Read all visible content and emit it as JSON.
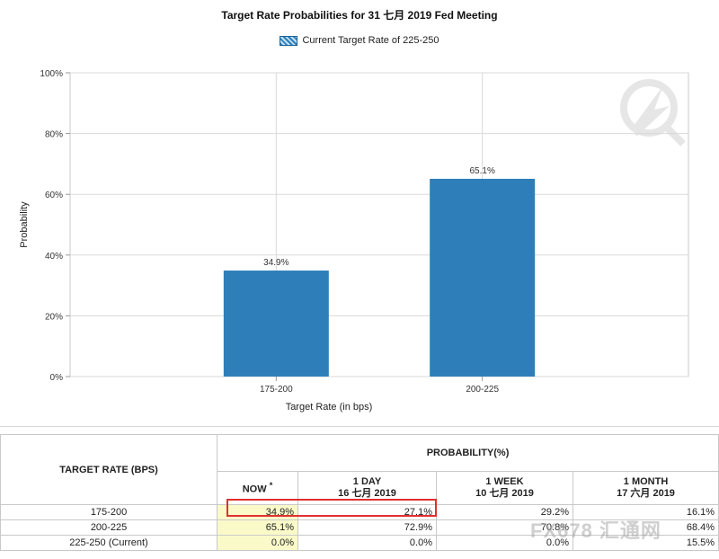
{
  "chart_data": {
    "type": "bar",
    "title": "Target Rate Probabilities for 31 七月 2019  Fed Meeting",
    "legend": [
      "Current Target Rate of 225-250"
    ],
    "legend_placement": "top-center",
    "xlabel": "Target Rate (in bps)",
    "ylabel": "Probability",
    "categories": [
      "175-200",
      "200-225"
    ],
    "values": [
      34.9,
      65.1
    ],
    "data_labels": [
      "34.9%",
      "65.1%"
    ],
    "ylim": [
      0,
      100
    ],
    "yticks": [
      "0%",
      "20%",
      "40%",
      "60%",
      "80%",
      "100%"
    ],
    "grid": true,
    "bar_color": "#2e7fb9"
  },
  "table": {
    "col_target_header": "TARGET RATE (BPS)",
    "col_prob_header": "PROBABILITY(%)",
    "sub_headers": [
      {
        "line1": "NOW",
        "sup": "*",
        "line2": ""
      },
      {
        "line1": "1 DAY",
        "sup": "",
        "line2": "16 七月 2019"
      },
      {
        "line1": "1 WEEK",
        "sup": "",
        "line2": "10 七月 2019"
      },
      {
        "line1": "1 MONTH",
        "sup": "",
        "line2": "17 六月 2019"
      }
    ],
    "rows": [
      {
        "rate": "175-200",
        "now": "34.9%",
        "day": "27.1%",
        "week": "29.2%",
        "month": "16.1%"
      },
      {
        "rate": "200-225",
        "now": "65.1%",
        "day": "72.9%",
        "week": "70.8%",
        "month": "68.4%"
      },
      {
        "rate": "225-250 (Current)",
        "now": "0.0%",
        "day": "0.0%",
        "week": "0.0%",
        "month": "15.5%"
      }
    ]
  },
  "watermark": {
    "text": "FX678 汇通网"
  },
  "colors": {
    "bar": "#2e7fb9",
    "now_column": "#fafac9",
    "highlight_border": "#e03030"
  }
}
